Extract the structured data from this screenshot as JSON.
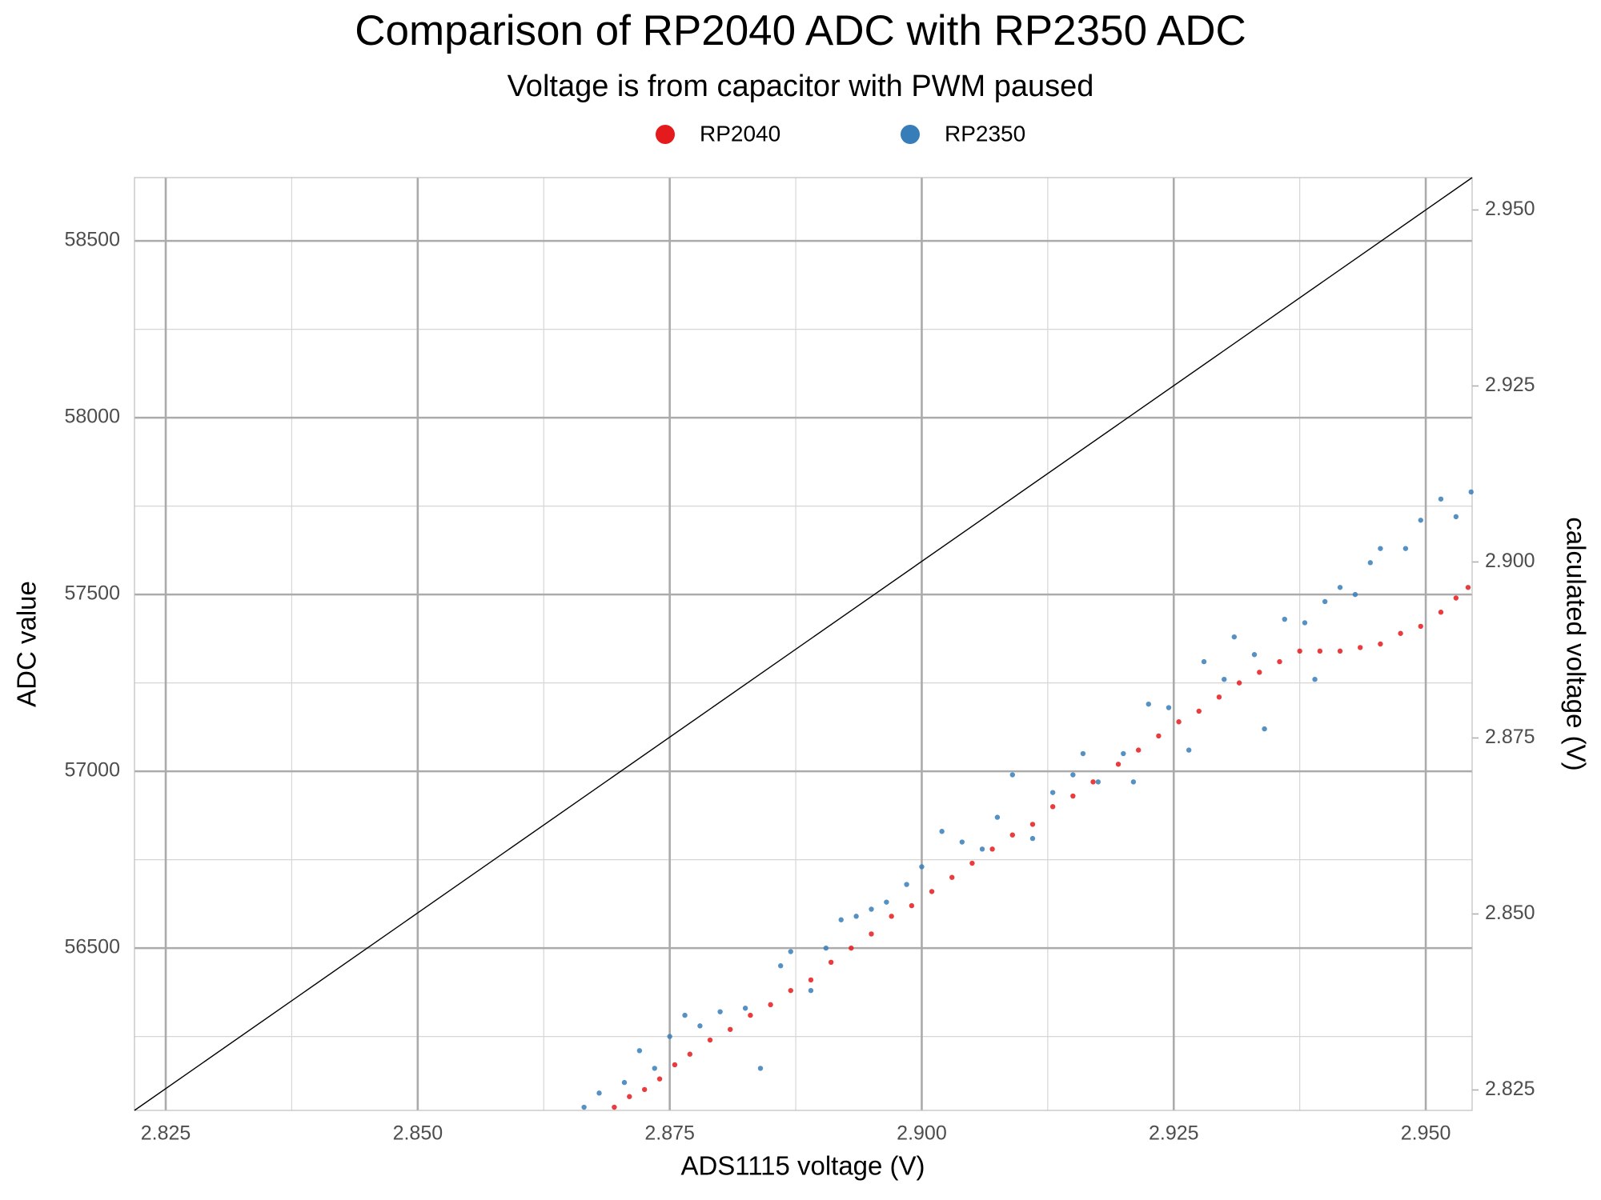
{
  "chart_data": {
    "type": "scatter",
    "title": "Comparison of RP2040 ADC with RP2350 ADC",
    "subtitle": "Voltage is from capacitor with PWM paused",
    "x_label": "ADS1115 voltage (V)",
    "y_label": "ADC value",
    "y2_label": "calculated voltage (V)",
    "xlim": [
      2.8219,
      2.9546
    ],
    "ylim": [
      56041,
      58679
    ],
    "y2lim": [
      2.8221,
      2.9546
    ],
    "xticks": [
      2.825,
      {
        "value": 2.85,
        "label": "2.850"
      },
      2.875,
      {
        "value": 2.9,
        "label": "2.900"
      },
      2.925,
      {
        "value": 2.95,
        "label": "2.950"
      }
    ],
    "yticks": [
      56500,
      57000,
      57500,
      58000,
      58500
    ],
    "y2ticks": [
      2.825,
      {
        "value": 2.85,
        "label": "2.850"
      },
      2.875,
      {
        "value": 2.9,
        "label": "2.900"
      },
      2.925,
      {
        "value": 2.95,
        "label": "2.950"
      }
    ],
    "grid": true,
    "minor_grid": true,
    "legend": "top",
    "reference_line": {
      "x": [
        2.8219,
        2.9546
      ],
      "values": [
        2.8221,
        2.9546
      ],
      "axis": "y2",
      "color": "#000000"
    },
    "series": [
      {
        "name": "RP2040",
        "color": "#e41a1c",
        "x": [
          2.8695,
          2.871,
          2.8725,
          2.874,
          2.8755,
          2.877,
          2.879,
          2.881,
          2.883,
          2.885,
          2.887,
          2.889,
          2.891,
          2.893,
          2.895,
          2.897,
          2.899,
          2.901,
          2.903,
          2.905,
          2.907,
          2.909,
          2.911,
          2.913,
          2.915,
          2.917,
          2.9195,
          2.9215,
          2.9235,
          2.9255,
          2.9275,
          2.9295,
          2.9315,
          2.9335,
          2.9355,
          2.9375,
          2.9395,
          2.9415,
          2.9435,
          2.9455,
          2.9475,
          2.9495,
          2.9515,
          2.953,
          2.9542
        ],
        "values": [
          56050,
          56080,
          56100,
          56130,
          56170,
          56200,
          56240,
          56270,
          56310,
          56340,
          56380,
          56410,
          56460,
          56500,
          56540,
          56590,
          56620,
          56660,
          56700,
          56740,
          56780,
          56820,
          56850,
          56900,
          56930,
          56970,
          57020,
          57060,
          57100,
          57140,
          57170,
          57210,
          57250,
          57280,
          57310,
          57340,
          57340,
          57340,
          57350,
          57360,
          57390,
          57410,
          57450,
          57490,
          57520
        ]
      },
      {
        "name": "RP2350",
        "color": "#377eb8",
        "x": [
          2.8665,
          2.868,
          2.8705,
          2.872,
          2.8735,
          2.875,
          2.8765,
          2.878,
          2.88,
          2.8825,
          2.884,
          2.886,
          2.887,
          2.889,
          2.8905,
          2.892,
          2.8935,
          2.895,
          2.8965,
          2.8985,
          2.9,
          2.902,
          2.904,
          2.906,
          2.9075,
          2.909,
          2.911,
          2.913,
          2.915,
          2.916,
          2.9175,
          2.92,
          2.921,
          2.9225,
          2.9245,
          2.9265,
          2.928,
          2.93,
          2.931,
          2.933,
          2.934,
          2.936,
          2.938,
          2.939,
          2.94,
          2.9415,
          2.943,
          2.9445,
          2.9455,
          2.948,
          2.9495,
          2.9515,
          2.953,
          2.9545
        ],
        "values": [
          56050,
          56090,
          56120,
          56210,
          56160,
          56250,
          56310,
          56280,
          56320,
          56330,
          56160,
          56450,
          56490,
          56380,
          56500,
          56580,
          56590,
          56610,
          56630,
          56680,
          56730,
          56830,
          56800,
          56780,
          56870,
          56990,
          56810,
          56940,
          56990,
          57050,
          56970,
          57050,
          56970,
          57190,
          57180,
          57060,
          57310,
          57260,
          57380,
          57330,
          57120,
          57430,
          57420,
          57260,
          57480,
          57520,
          57500,
          57590,
          57630,
          57630,
          57710,
          57770,
          57720,
          57790
        ]
      }
    ]
  }
}
